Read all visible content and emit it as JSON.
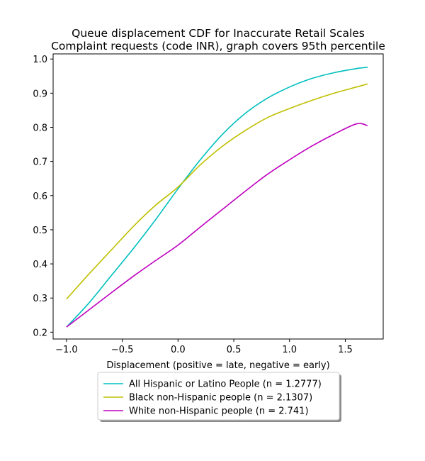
{
  "chart_data": {
    "type": "line",
    "title": "Queue displacement CDF for Inaccurate Retail Scales",
    "subtitle": "Complaint  requests (code INR), graph covers 95th percentile",
    "xlabel": "Displacement (positive = late, negative = early)",
    "ylabel": "",
    "xlim": [
      -1.12,
      1.84
    ],
    "ylim": [
      0.18,
      1.015
    ],
    "xticks": [
      -1.0,
      -0.5,
      0.0,
      0.5,
      1.0,
      1.5
    ],
    "xtick_labels": [
      "−1.0",
      "−0.5",
      "0.0",
      "0.5",
      "1.0",
      "1.5"
    ],
    "yticks": [
      0.2,
      0.3,
      0.4,
      0.5,
      0.6,
      0.7,
      0.8,
      0.9,
      1.0
    ],
    "ytick_labels": [
      "0.2",
      "0.3",
      "0.4",
      "0.5",
      "0.6",
      "0.7",
      "0.8",
      "0.9",
      "1.0"
    ],
    "grid": false,
    "legend_position": "below",
    "x": [
      -1.0,
      -0.8,
      -0.6,
      -0.4,
      -0.2,
      0.0,
      0.2,
      0.4,
      0.6,
      0.8,
      1.0,
      1.2,
      1.4,
      1.6,
      1.7
    ],
    "series": [
      {
        "name": "All Hispanic or Latino People (n = 1.2777)",
        "color": "#00bfbf",
        "values": [
          0.215,
          0.285,
          0.365,
          0.445,
          0.53,
          0.62,
          0.705,
          0.78,
          0.84,
          0.885,
          0.918,
          0.943,
          0.96,
          0.972,
          0.976
        ]
      },
      {
        "name": "Black non-Hispanic people (n = 2.1307)",
        "color": "#bfbf00",
        "values": [
          0.297,
          0.37,
          0.44,
          0.51,
          0.572,
          0.625,
          0.69,
          0.745,
          0.79,
          0.828,
          0.855,
          0.879,
          0.9,
          0.918,
          0.927
        ]
      },
      {
        "name": "White non-Hispanic people (n = 2.741)",
        "color": "#bf00bf",
        "values": [
          0.215,
          0.265,
          0.315,
          0.364,
          0.41,
          0.455,
          0.508,
          0.56,
          0.612,
          0.662,
          0.705,
          0.745,
          0.78,
          0.81,
          0.805
        ]
      }
    ]
  }
}
